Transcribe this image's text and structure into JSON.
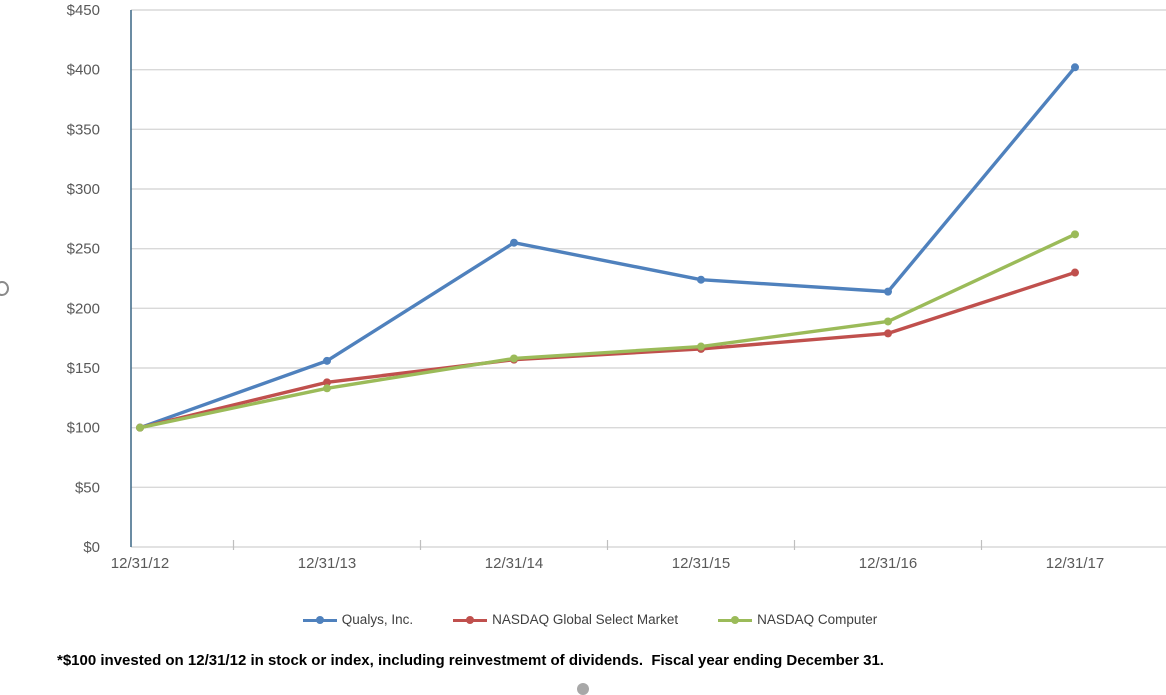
{
  "chart_data": {
    "type": "line",
    "title": "",
    "categories": [
      "12/31/12",
      "12/31/13",
      "12/31/14",
      "12/31/15",
      "12/31/16",
      "12/31/17"
    ],
    "series": [
      {
        "name": "Qualys, Inc.",
        "color": "#4F81BD",
        "values": [
          100,
          156,
          255,
          224,
          214,
          402
        ]
      },
      {
        "name": "NASDAQ Global Select Market",
        "color": "#C0504D",
        "values": [
          100,
          138,
          157,
          166,
          179,
          230
        ]
      },
      {
        "name": "NASDAQ Computer",
        "color": "#9BBB59",
        "values": [
          100,
          133,
          158,
          168,
          189,
          262
        ]
      }
    ],
    "xlabel": "",
    "ylabel": "",
    "ylim": [
      0,
      450
    ],
    "y_tick_step": 50,
    "y_tick_labels": [
      "$0",
      "$50",
      "$100",
      "$150",
      "$200",
      "$250",
      "$300",
      "$350",
      "$400",
      "$450"
    ],
    "grid": true,
    "legend_position": "bottom",
    "marker": "circle"
  },
  "styles": {
    "gridline_color": "#d9d9d9",
    "axis_line_color": "#46708c",
    "tick_color": "#bfbfbf",
    "axis_label_color": "#595959"
  },
  "footnote": "*$100 invested on 12/31/12 in stock or index, including reinvestmemt of dividends.  Fiscal year ending December 31."
}
